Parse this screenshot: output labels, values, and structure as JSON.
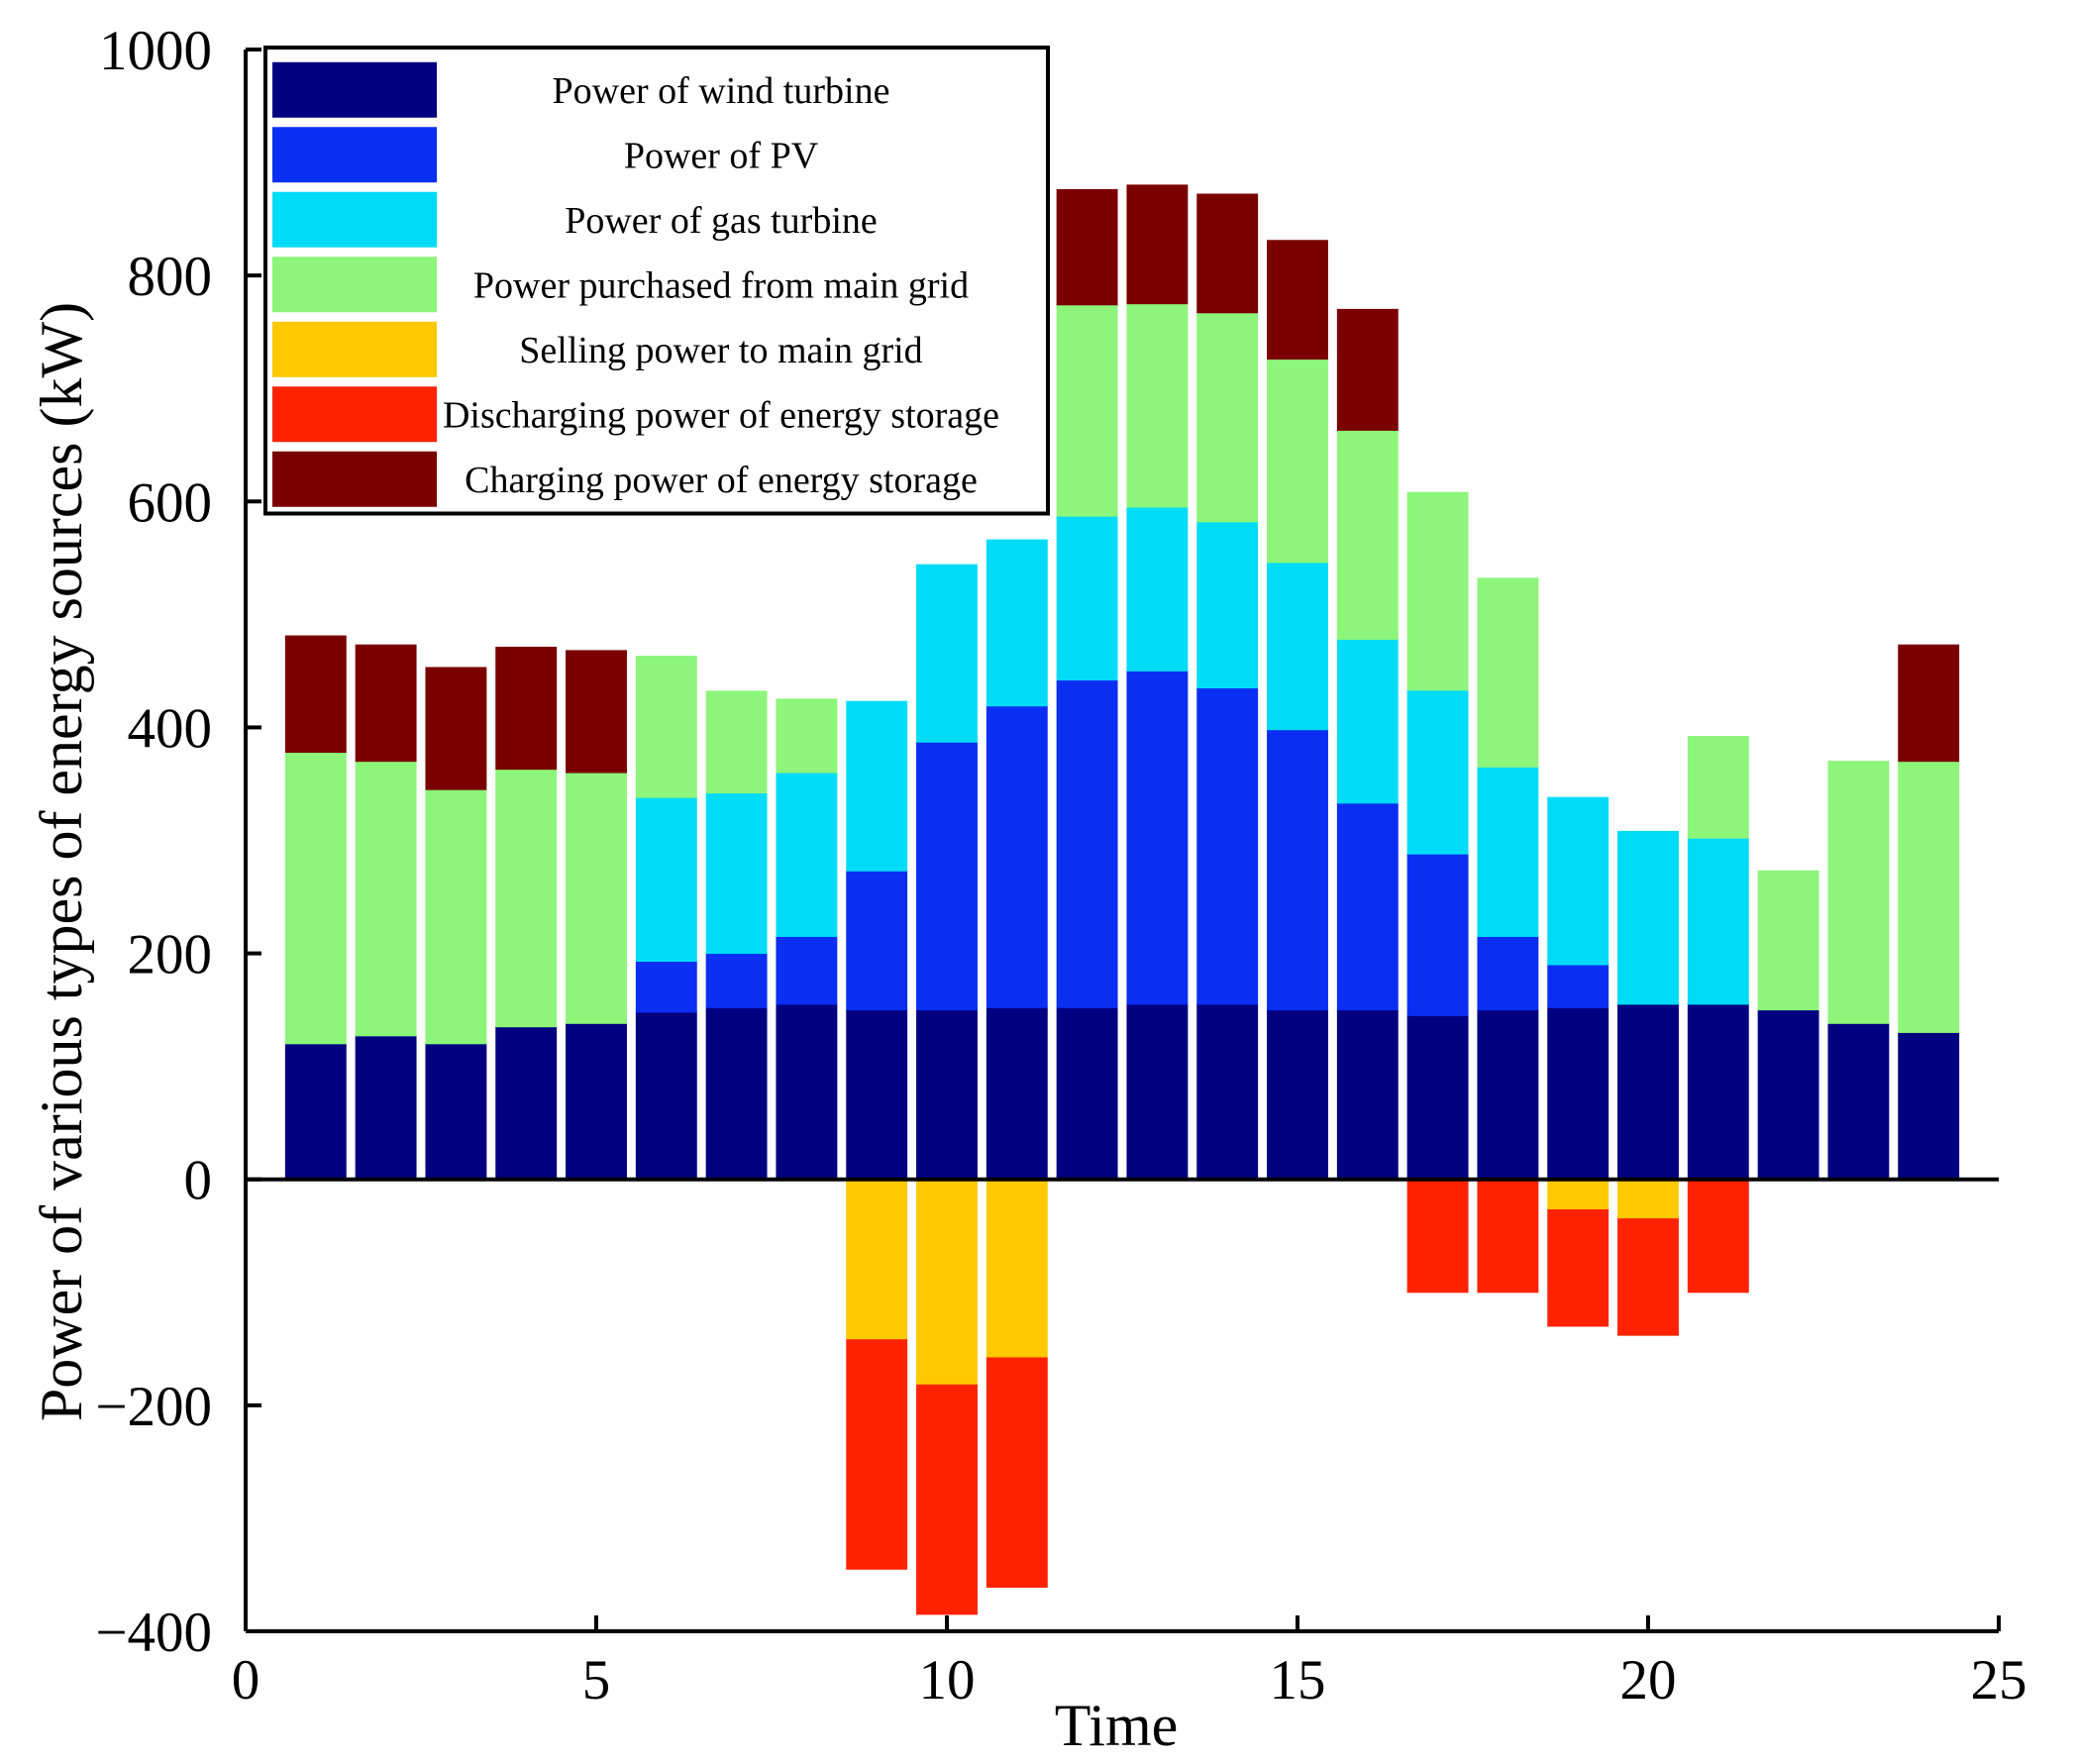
{
  "chart_data": {
    "type": "bar",
    "stacked": true,
    "title": "",
    "xlabel": "Time",
    "ylabel": "Power of various types of energy sources (kW)",
    "xlim": [
      0,
      25
    ],
    "ylim": [
      -400,
      1000
    ],
    "xticks": [
      0,
      5,
      10,
      15,
      20,
      25
    ],
    "yticks": [
      -400,
      -200,
      0,
      200,
      400,
      600,
      800,
      1000
    ],
    "grid": false,
    "legend_position": "top-left",
    "x": [
      1,
      2,
      3,
      4,
      5,
      6,
      7,
      8,
      9,
      10,
      11,
      12,
      13,
      14,
      15,
      16,
      17,
      18,
      19,
      20,
      21,
      22,
      23,
      24
    ],
    "series": [
      {
        "name": "Power of wind turbine",
        "color": "#000080",
        "values": [
          120,
          127,
          120,
          135,
          138,
          148,
          152,
          155,
          150,
          150,
          152,
          152,
          155,
          155,
          150,
          150,
          145,
          150,
          152,
          155,
          155,
          150,
          138,
          130
        ]
      },
      {
        "name": "Power of PV",
        "color": "#0a2ff2",
        "values": [
          0,
          0,
          0,
          0,
          0,
          45,
          48,
          60,
          123,
          237,
          267,
          290,
          295,
          280,
          248,
          183,
          143,
          65,
          38,
          0,
          0,
          0,
          0,
          0
        ]
      },
      {
        "name": "Power of gas turbine",
        "color": "#00dcf8",
        "values": [
          0,
          0,
          0,
          0,
          0,
          145,
          142,
          145,
          150,
          157,
          147,
          145,
          145,
          147,
          148,
          145,
          145,
          150,
          148,
          153,
          147,
          0,
          0,
          0
        ]
      },
      {
        "name": "Power purchased from main grid",
        "color": "#8cf57a",
        "values": [
          258,
          243,
          225,
          228,
          222,
          125,
          90,
          65,
          0,
          0,
          0,
          187,
          180,
          185,
          180,
          185,
          175,
          167,
          0,
          0,
          90,
          123,
          232,
          240
        ]
      },
      {
        "name": "Selling power to main grid",
        "color": "#ffc800",
        "values": [
          0,
          0,
          0,
          0,
          0,
          0,
          0,
          0,
          -142,
          -182,
          -158,
          0,
          0,
          0,
          0,
          0,
          0,
          0,
          -27,
          -35,
          0,
          0,
          0,
          0
        ]
      },
      {
        "name": "Discharging power of energy storage",
        "color": "#ff2200",
        "values": [
          0,
          0,
          0,
          0,
          0,
          0,
          0,
          0,
          -203,
          -203,
          -203,
          0,
          0,
          0,
          0,
          0,
          -100,
          -100,
          -103,
          -103,
          -100,
          0,
          0,
          0
        ]
      },
      {
        "name": "Charging power of energy storage",
        "color": "#7a0000",
        "values": [
          103,
          103,
          108,
          108,
          108,
          0,
          0,
          0,
          0,
          0,
          0,
          102,
          105,
          105,
          105,
          107,
          0,
          0,
          0,
          0,
          0,
          0,
          0,
          103
        ]
      }
    ]
  }
}
